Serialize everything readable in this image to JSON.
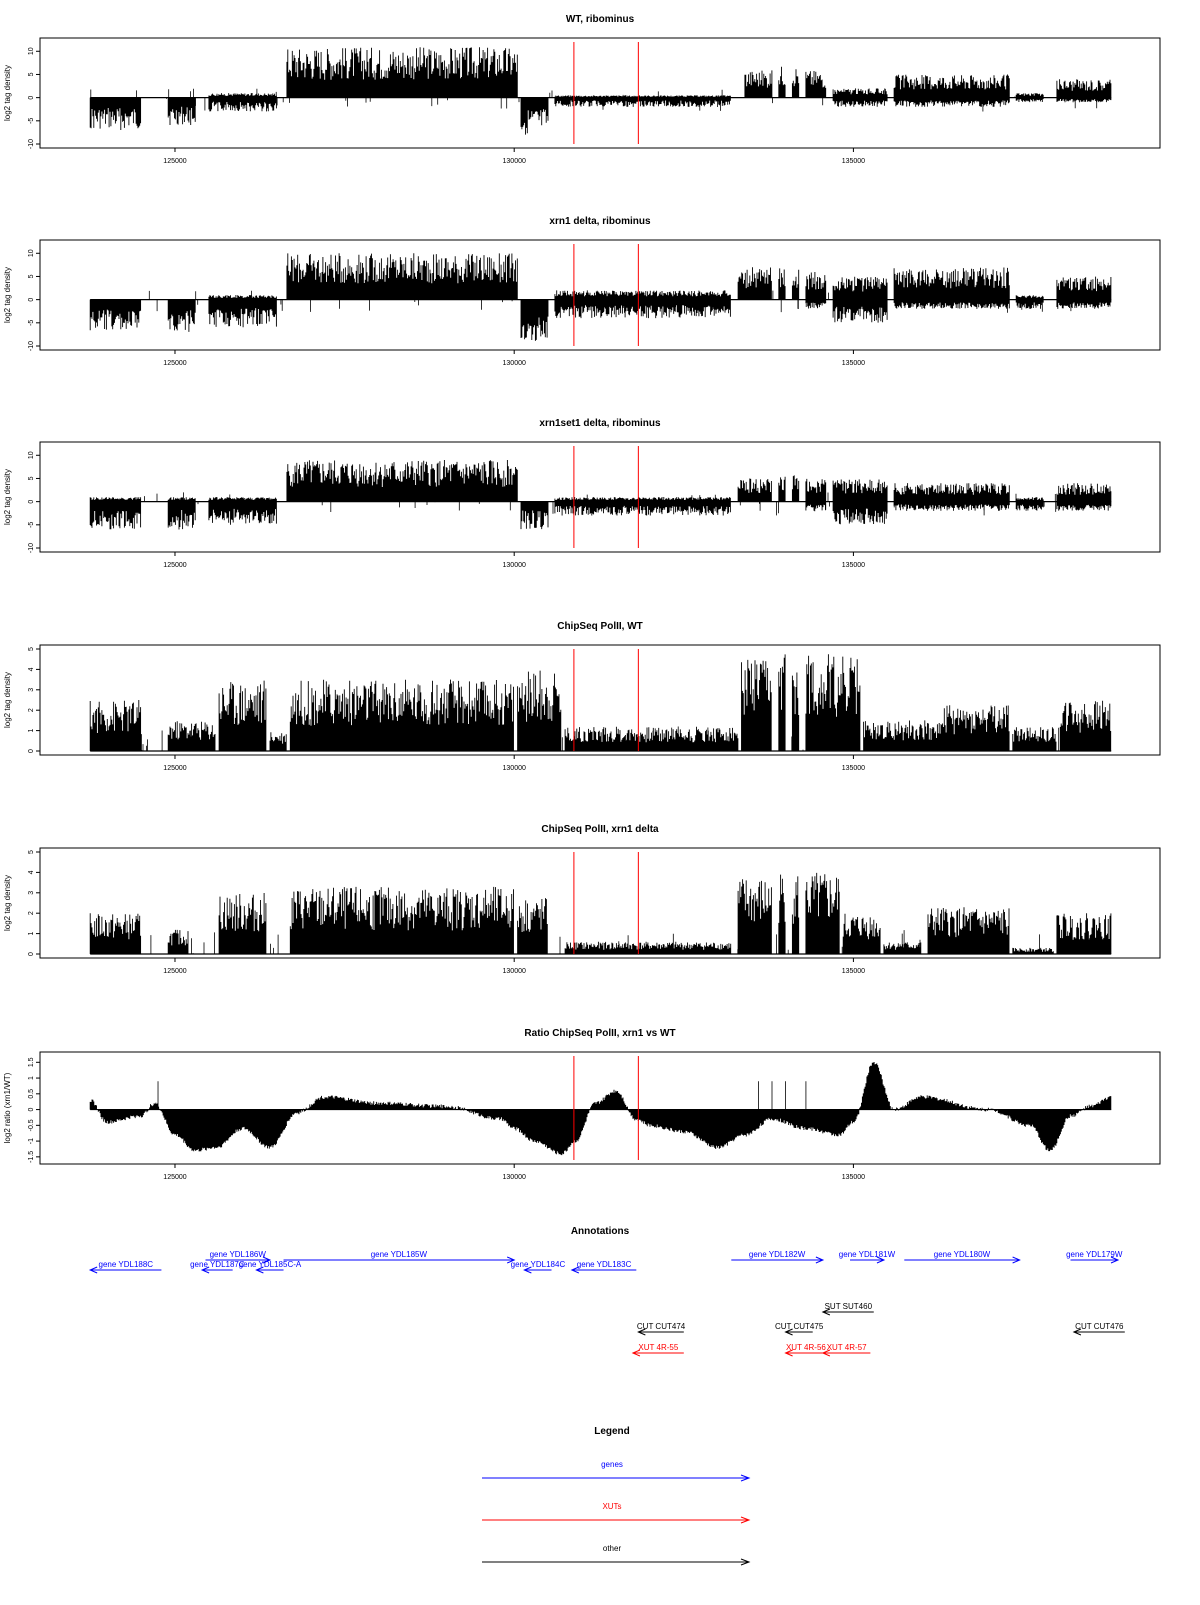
{
  "chart_data": [
    {
      "type": "bar",
      "title": "WT, ribominus",
      "ylabel": "log2 tag density",
      "yticks": [
        "10",
        "5",
        "0",
        "-5",
        "-10"
      ],
      "ylim": [
        -10,
        12
      ],
      "xlim": [
        123600,
        138900
      ],
      "xticks": [
        "125000",
        "130000",
        "135000"
      ],
      "xtick_values": [
        125000,
        130000,
        135000
      ],
      "markers": [
        130880,
        131830
      ],
      "segments": [
        {
          "x0": 123750,
          "x1": 124500,
          "lo": -7,
          "hi": 0
        },
        {
          "x0": 124900,
          "x1": 125300,
          "lo": -6,
          "hi": 0
        },
        {
          "x0": 125500,
          "x1": 126500,
          "lo": -3,
          "hi": 1
        },
        {
          "x0": 126650,
          "x1": 130050,
          "lo": 0,
          "hi": 11
        },
        {
          "x0": 130100,
          "x1": 130500,
          "lo": -8,
          "hi": 0
        },
        {
          "x0": 130600,
          "x1": 133200,
          "lo": -2,
          "hi": 0.5
        },
        {
          "x0": 133400,
          "x1": 133800,
          "lo": 0,
          "hi": 6
        },
        {
          "x0": 133900,
          "x1": 134000,
          "lo": 0,
          "hi": 7
        },
        {
          "x0": 134100,
          "x1": 134200,
          "lo": 0,
          "hi": 7
        },
        {
          "x0": 134300,
          "x1": 134600,
          "lo": 0,
          "hi": 6
        },
        {
          "x0": 134700,
          "x1": 135500,
          "lo": -2,
          "hi": 2
        },
        {
          "x0": 135600,
          "x1": 137300,
          "lo": -2,
          "hi": 5
        },
        {
          "x0": 137400,
          "x1": 137800,
          "lo": -1,
          "hi": 1
        },
        {
          "x0": 138000,
          "x1": 138800,
          "lo": -1,
          "hi": 4
        }
      ]
    },
    {
      "type": "bar",
      "title": "xrn1 delta, ribominus",
      "ylabel": "log2 tag density",
      "yticks": [
        "10",
        "5",
        "0",
        "-5",
        "-10"
      ],
      "ylim": [
        -10,
        12
      ],
      "xlim": [
        123600,
        138900
      ],
      "xticks": [
        "125000",
        "130000",
        "135000"
      ],
      "xtick_values": [
        125000,
        130000,
        135000
      ],
      "markers": [
        130880,
        131830
      ],
      "segments": [
        {
          "x0": 123750,
          "x1": 124500,
          "lo": -7,
          "hi": 0
        },
        {
          "x0": 124900,
          "x1": 125300,
          "lo": -7,
          "hi": 0
        },
        {
          "x0": 125500,
          "x1": 126500,
          "lo": -6,
          "hi": 1
        },
        {
          "x0": 126650,
          "x1": 130050,
          "lo": 0,
          "hi": 10
        },
        {
          "x0": 130100,
          "x1": 130500,
          "lo": -9,
          "hi": 0
        },
        {
          "x0": 130600,
          "x1": 133200,
          "lo": -4,
          "hi": 2
        },
        {
          "x0": 133300,
          "x1": 133800,
          "lo": 0,
          "hi": 7
        },
        {
          "x0": 133900,
          "x1": 134000,
          "lo": 0,
          "hi": 7
        },
        {
          "x0": 134100,
          "x1": 134200,
          "lo": 0,
          "hi": 7
        },
        {
          "x0": 134300,
          "x1": 134600,
          "lo": -2,
          "hi": 6
        },
        {
          "x0": 134700,
          "x1": 135500,
          "lo": -5,
          "hi": 5
        },
        {
          "x0": 135600,
          "x1": 137300,
          "lo": -2,
          "hi": 7
        },
        {
          "x0": 137400,
          "x1": 137800,
          "lo": -2,
          "hi": 1
        },
        {
          "x0": 138000,
          "x1": 138800,
          "lo": -2,
          "hi": 5
        }
      ]
    },
    {
      "type": "bar",
      "title": "xrn1set1 delta, ribominus",
      "ylabel": "log2 tag density",
      "yticks": [
        "10",
        "5",
        "0",
        "-5",
        "-10"
      ],
      "ylim": [
        -10,
        12
      ],
      "xlim": [
        123600,
        138900
      ],
      "xticks": [
        "125000",
        "130000",
        "135000"
      ],
      "xtick_values": [
        125000,
        130000,
        135000
      ],
      "markers": [
        130880,
        131830
      ],
      "segments": [
        {
          "x0": 123750,
          "x1": 124500,
          "lo": -6,
          "hi": 1
        },
        {
          "x0": 124900,
          "x1": 125300,
          "lo": -6,
          "hi": 1
        },
        {
          "x0": 125500,
          "x1": 126500,
          "lo": -5,
          "hi": 1
        },
        {
          "x0": 126650,
          "x1": 130050,
          "lo": 0,
          "hi": 9
        },
        {
          "x0": 130100,
          "x1": 130500,
          "lo": -6,
          "hi": 0
        },
        {
          "x0": 130600,
          "x1": 133200,
          "lo": -3,
          "hi": 1
        },
        {
          "x0": 133300,
          "x1": 133800,
          "lo": 0,
          "hi": 5
        },
        {
          "x0": 133900,
          "x1": 134000,
          "lo": 0,
          "hi": 6
        },
        {
          "x0": 134100,
          "x1": 134200,
          "lo": 0,
          "hi": 6
        },
        {
          "x0": 134300,
          "x1": 134600,
          "lo": -2,
          "hi": 5
        },
        {
          "x0": 134700,
          "x1": 135500,
          "lo": -5,
          "hi": 5
        },
        {
          "x0": 135600,
          "x1": 137300,
          "lo": -2,
          "hi": 4
        },
        {
          "x0": 137400,
          "x1": 137800,
          "lo": -2,
          "hi": 1
        },
        {
          "x0": 138000,
          "x1": 138800,
          "lo": -2,
          "hi": 4
        }
      ]
    },
    {
      "type": "bar",
      "title": "ChipSeq PolII, WT",
      "ylabel": "log2 tag density",
      "yticks": [
        "5",
        "4",
        "3",
        "2",
        "1",
        "0"
      ],
      "ylim": [
        0,
        5
      ],
      "xlim": [
        123600,
        138900
      ],
      "xticks": [
        "125000",
        "130000",
        "135000"
      ],
      "xtick_values": [
        125000,
        130000,
        135000
      ],
      "markers": [
        130880,
        131830
      ],
      "segments": [
        {
          "x0": 123750,
          "x1": 124500,
          "lo": 0,
          "hi": 2.5
        },
        {
          "x0": 124900,
          "x1": 125600,
          "lo": 0,
          "hi": 1.5
        },
        {
          "x0": 125650,
          "x1": 126350,
          "lo": 0,
          "hi": 3.5
        },
        {
          "x0": 126400,
          "x1": 126650,
          "lo": 0,
          "hi": 1
        },
        {
          "x0": 126700,
          "x1": 130000,
          "lo": 0,
          "hi": 3.5
        },
        {
          "x0": 130050,
          "x1": 130700,
          "lo": 0,
          "hi": 4
        },
        {
          "x0": 130750,
          "x1": 133300,
          "lo": 0,
          "hi": 1.2
        },
        {
          "x0": 133350,
          "x1": 133800,
          "lo": 0,
          "hi": 4.5
        },
        {
          "x0": 133900,
          "x1": 134000,
          "lo": 0,
          "hi": 4.8
        },
        {
          "x0": 134100,
          "x1": 134200,
          "lo": 0,
          "hi": 4.8
        },
        {
          "x0": 134300,
          "x1": 135100,
          "lo": 0,
          "hi": 4.8
        },
        {
          "x0": 135150,
          "x1": 136300,
          "lo": 0,
          "hi": 1.5
        },
        {
          "x0": 136300,
          "x1": 137300,
          "lo": 0,
          "hi": 2.3
        },
        {
          "x0": 137350,
          "x1": 138000,
          "lo": 0,
          "hi": 1.2
        },
        {
          "x0": 138050,
          "x1": 138800,
          "lo": 0,
          "hi": 2.5
        }
      ]
    },
    {
      "type": "bar",
      "title": "ChipSeq PolII, xrn1 delta",
      "ylabel": "log2 tag density",
      "yticks": [
        "5",
        "4",
        "3",
        "2",
        "1",
        "0"
      ],
      "ylim": [
        0,
        5
      ],
      "xlim": [
        123600,
        138900
      ],
      "xticks": [
        "125000",
        "130000",
        "135000"
      ],
      "xtick_values": [
        125000,
        130000,
        135000
      ],
      "markers": [
        130880,
        131830
      ],
      "segments": [
        {
          "x0": 123750,
          "x1": 124500,
          "lo": 0,
          "hi": 2
        },
        {
          "x0": 124900,
          "x1": 125200,
          "lo": 0,
          "hi": 1.2
        },
        {
          "x0": 125650,
          "x1": 126350,
          "lo": 0,
          "hi": 3
        },
        {
          "x0": 126700,
          "x1": 130000,
          "lo": 0,
          "hi": 3.3
        },
        {
          "x0": 130050,
          "x1": 130500,
          "lo": 0,
          "hi": 2.8
        },
        {
          "x0": 130750,
          "x1": 133200,
          "lo": 0,
          "hi": 0.6
        },
        {
          "x0": 133300,
          "x1": 133800,
          "lo": 0,
          "hi": 3.8
        },
        {
          "x0": 133900,
          "x1": 134000,
          "lo": 0,
          "hi": 4.1
        },
        {
          "x0": 134100,
          "x1": 134200,
          "lo": 0,
          "hi": 4.1
        },
        {
          "x0": 134300,
          "x1": 134800,
          "lo": 0,
          "hi": 4
        },
        {
          "x0": 134850,
          "x1": 135400,
          "lo": 0,
          "hi": 2
        },
        {
          "x0": 135450,
          "x1": 136000,
          "lo": 0,
          "hi": 0.6
        },
        {
          "x0": 136100,
          "x1": 137300,
          "lo": 0,
          "hi": 2.3
        },
        {
          "x0": 137350,
          "x1": 137950,
          "lo": 0,
          "hi": 0.3
        },
        {
          "x0": 138000,
          "x1": 138800,
          "lo": 0,
          "hi": 2
        }
      ]
    },
    {
      "type": "area",
      "title": "Ratio ChipSeq PolII, xrn1 vs WT",
      "ylabel": "log2 ratio (xrn1/WT)",
      "yticks": [
        "1.5",
        "1",
        "0.5",
        "0",
        "-0.5",
        "-1",
        "-1.5"
      ],
      "ylim": [
        -1.6,
        1.7
      ],
      "xlim": [
        123600,
        138900
      ],
      "xticks": [
        "125000",
        "130000",
        "135000"
      ],
      "xtick_values": [
        125000,
        130000,
        135000
      ],
      "markers": [
        130880,
        131830
      ],
      "x": [
        123750,
        124000,
        124500,
        124700,
        125000,
        125300,
        125600,
        126000,
        126400,
        126800,
        127200,
        128000,
        129000,
        129800,
        130000,
        130300,
        130700,
        130900,
        131200,
        131500,
        131800,
        132000,
        132500,
        133000,
        133400,
        133800,
        134300,
        134800,
        135000,
        135300,
        135600,
        136000,
        137000,
        137600,
        137900,
        138200,
        138500,
        138800
      ],
      "y": [
        0.3,
        -0.4,
        -0.2,
        0.2,
        -0.8,
        -1.3,
        -1.2,
        -0.6,
        -1.2,
        -0.1,
        0.4,
        0.2,
        0.1,
        -0.3,
        -0.6,
        -1.0,
        -1.4,
        -1.0,
        0.2,
        0.6,
        -0.3,
        -0.5,
        -0.7,
        -1.2,
        -0.8,
        -0.3,
        -0.6,
        -0.8,
        -0.4,
        1.5,
        0.0,
        0.4,
        0.0,
        -0.5,
        -1.3,
        -0.2,
        0.1,
        0.4
      ]
    }
  ],
  "annotations": {
    "title": "Annotations",
    "colors": {
      "genes": "#0000ff",
      "XUTs": "#ff0000",
      "other": "#000000"
    },
    "items": [
      {
        "label": "gene YDL188C",
        "x0": 123750,
        "x1": 124800,
        "dir": "left",
        "kind": "genes",
        "row": 1
      },
      {
        "label": "gene YDL186W",
        "x0": 125450,
        "x1": 126400,
        "dir": "right",
        "kind": "genes",
        "row": 0
      },
      {
        "label": "gene YDL187C",
        "x0": 125400,
        "x1": 125850,
        "dir": "left",
        "kind": "genes",
        "row": 1
      },
      {
        "label": "gene YDL185C-A",
        "x0": 126200,
        "x1": 126600,
        "dir": "left",
        "kind": "genes",
        "row": 1
      },
      {
        "label": "gene YDL185W",
        "x0": 126600,
        "x1": 130000,
        "dir": "right",
        "kind": "genes",
        "row": 0
      },
      {
        "label": "gene YDL184C",
        "x0": 130150,
        "x1": 130550,
        "dir": "left",
        "kind": "genes",
        "row": 1
      },
      {
        "label": "gene YDL183C",
        "x0": 130850,
        "x1": 131800,
        "dir": "left",
        "kind": "genes",
        "row": 1
      },
      {
        "label": "gene YDL182W",
        "x0": 133200,
        "x1": 134550,
        "dir": "right",
        "kind": "genes",
        "row": 0
      },
      {
        "label": "gene YDL181W",
        "x0": 134950,
        "x1": 135450,
        "dir": "right",
        "kind": "genes",
        "row": 0
      },
      {
        "label": "gene YDL180W",
        "x0": 135750,
        "x1": 137450,
        "dir": "right",
        "kind": "genes",
        "row": 0
      },
      {
        "label": "gene YDL179W",
        "x0": 138200,
        "x1": 138900,
        "dir": "right",
        "kind": "genes",
        "row": 0
      },
      {
        "label": "SUT SUT460",
        "x0": 134550,
        "x1": 135300,
        "dir": "left",
        "kind": "other",
        "row": 2
      },
      {
        "label": "CUT CUT474",
        "x0": 131830,
        "x1": 132500,
        "dir": "left",
        "kind": "other",
        "row": 3
      },
      {
        "label": "CUT CUT475",
        "x0": 134000,
        "x1": 134400,
        "dir": "left",
        "kind": "other",
        "row": 3
      },
      {
        "label": "CUT CUT476",
        "x0": 138250,
        "x1": 139000,
        "dir": "left",
        "kind": "other",
        "row": 3
      },
      {
        "label": "XUT 4R-55",
        "x0": 131750,
        "x1": 132500,
        "dir": "left",
        "kind": "XUTs",
        "row": 4
      },
      {
        "label": "XUT 4R-56",
        "x0": 134000,
        "x1": 134600,
        "dir": "left",
        "kind": "XUTs",
        "row": 4
      },
      {
        "label": "XUT 4R-57",
        "x0": 134550,
        "x1": 135250,
        "dir": "left",
        "kind": "XUTs",
        "row": 4
      }
    ]
  },
  "legend": {
    "title": "Legend",
    "items": [
      {
        "label": "genes",
        "color": "#0000ff"
      },
      {
        "label": "XUTs",
        "color": "#ff0000"
      },
      {
        "label": "other",
        "color": "#000000"
      }
    ]
  }
}
